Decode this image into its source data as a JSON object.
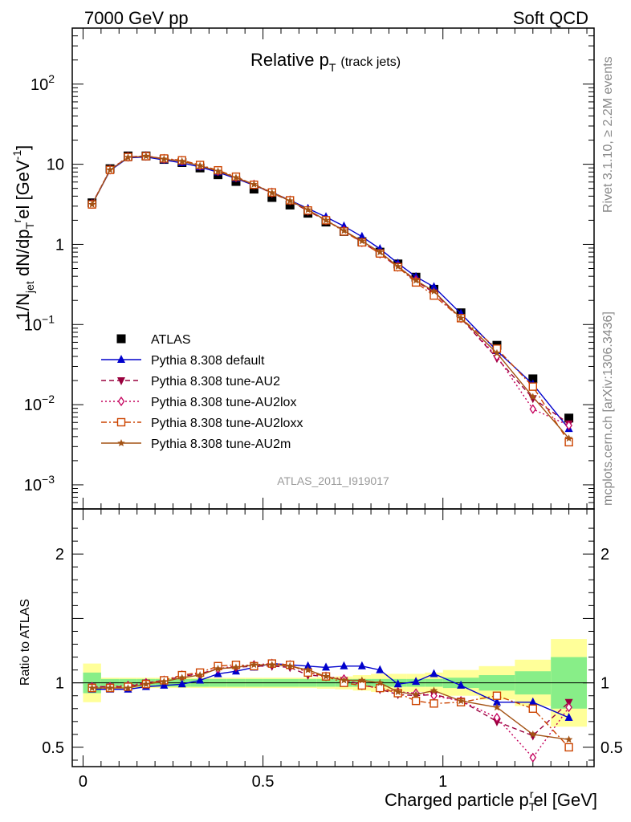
{
  "header": {
    "left": "7000 GeV pp",
    "right": "Soft QCD"
  },
  "side_text": {
    "rivet": "Rivet 3.1.10, ≥ 2.2M events",
    "mcplots": "mcplots.cern.ch [arXiv:1306.3436]"
  },
  "analysis_label": "ATLAS_2011_I919017",
  "chart_data": [
    {
      "type": "line",
      "title": "Relative p_T (track jets)",
      "title_main": "Relative p",
      "title_sub": "T",
      "title_suffix": "(track jets)",
      "ylabel": "1/N_jet dN/dp_T^rel [GeV^-1]",
      "ylabel_parts": {
        "a": "1/N",
        "a_sub": "jet",
        "b": " dN/dp",
        "b_sub": "T",
        "b_sup": "r",
        "c": "el [GeV",
        "c_sup": "-1",
        "d": "]"
      },
      "yscale": "log",
      "ylim": [
        0.0005,
        500
      ],
      "xlim": [
        -0.03,
        1.42
      ],
      "y_ticks": [
        "10^-3",
        "10^-2",
        "10^-1",
        "1",
        "10",
        "10^2"
      ],
      "legend_position": "bottom-left",
      "x": [
        0.025,
        0.075,
        0.125,
        0.175,
        0.225,
        0.275,
        0.325,
        0.375,
        0.425,
        0.475,
        0.525,
        0.575,
        0.625,
        0.675,
        0.725,
        0.775,
        0.825,
        0.875,
        0.925,
        0.975,
        1.05,
        1.15,
        1.25,
        1.35
      ],
      "series": [
        {
          "name": "ATLAS",
          "color": "#000000",
          "marker": "square-filled",
          "line": "none",
          "values": [
            3.3,
            8.8,
            12.7,
            12.7,
            11.5,
            10.5,
            9.0,
            7.4,
            6.1,
            4.9,
            3.85,
            3.1,
            2.45,
            1.9,
            1.45,
            1.08,
            0.8,
            0.57,
            0.39,
            0.275,
            0.14,
            0.055,
            0.021,
            0.0068
          ]
        },
        {
          "name": "Pythia 8.308 default",
          "color": "#0000cc",
          "marker": "triangle-up-filled",
          "line": "solid",
          "values": [
            3.15,
            8.35,
            12.0,
            12.3,
            11.3,
            10.4,
            9.25,
            7.95,
            6.65,
            5.45,
            4.45,
            3.55,
            2.8,
            2.2,
            1.69,
            1.25,
            0.88,
            0.58,
            0.395,
            0.295,
            0.137,
            0.047,
            0.018,
            0.005
          ]
        },
        {
          "name": "Pythia 8.308 tune-AU2",
          "color": "#99003d",
          "marker": "triangle-down-filled",
          "line": "dashed",
          "values": [
            3.2,
            8.5,
            12.3,
            12.7,
            11.7,
            11.0,
            9.6,
            8.2,
            6.8,
            5.5,
            4.35,
            3.5,
            2.6,
            2.0,
            1.48,
            1.07,
            0.76,
            0.52,
            0.35,
            0.25,
            0.12,
            0.038,
            0.012,
            0.0058
          ]
        },
        {
          "name": "Pythia 8.308 tune-AU2lox",
          "color": "#c4005c",
          "marker": "diamond-open",
          "line": "dotted",
          "values": [
            3.2,
            8.6,
            12.4,
            12.7,
            11.7,
            11.1,
            9.6,
            8.2,
            6.9,
            5.6,
            4.45,
            3.55,
            2.65,
            2.0,
            1.5,
            1.06,
            0.77,
            0.53,
            0.36,
            0.25,
            0.12,
            0.04,
            0.0088,
            0.0055
          ]
        },
        {
          "name": "Pythia 8.308 tune-AU2loxx",
          "color": "#cc4400",
          "marker": "square-open",
          "line": "dash-dot",
          "values": [
            3.15,
            8.5,
            12.3,
            12.6,
            11.8,
            11.2,
            9.8,
            8.4,
            7.0,
            5.55,
            4.45,
            3.55,
            2.65,
            2.0,
            1.45,
            1.06,
            0.77,
            0.52,
            0.335,
            0.23,
            0.12,
            0.05,
            0.0168,
            0.0034
          ]
        },
        {
          "name": "Pythia 8.308 tune-AU2m",
          "color": "#a35214",
          "marker": "star",
          "line": "solid",
          "values": [
            3.15,
            8.5,
            12.2,
            12.6,
            11.6,
            10.9,
            9.6,
            8.2,
            6.8,
            5.6,
            4.4,
            3.5,
            2.7,
            2.0,
            1.48,
            1.1,
            0.8,
            0.53,
            0.355,
            0.26,
            0.12,
            0.044,
            0.0125,
            0.0038
          ]
        }
      ]
    },
    {
      "type": "line",
      "xlabel": "Charged particle p_T^rel [GeV]",
      "xlabel_parts": {
        "a": "Charged particle p",
        "a_sub": "T",
        "a_sup": "r",
        "b": "el [GeV]"
      },
      "ylabel": "Ratio to ATLAS",
      "ylim": [
        0.35,
        2.35
      ],
      "y_ticks": [
        0.5,
        1,
        2
      ],
      "xlim": [
        -0.03,
        1.42
      ],
      "x_ticks": [
        0,
        0.5,
        1
      ],
      "x_tick_labels": [
        "0",
        "0.5",
        "1"
      ],
      "reference_line": 1,
      "x": [
        0.025,
        0.075,
        0.125,
        0.175,
        0.225,
        0.275,
        0.325,
        0.375,
        0.425,
        0.475,
        0.525,
        0.575,
        0.625,
        0.675,
        0.725,
        0.775,
        0.825,
        0.875,
        0.925,
        0.975,
        1.05,
        1.15,
        1.25,
        1.35
      ],
      "band_edges": [
        0.0,
        0.05,
        0.1,
        0.15,
        0.2,
        0.25,
        0.3,
        0.35,
        0.4,
        0.45,
        0.5,
        0.55,
        0.6,
        0.65,
        0.7,
        0.75,
        0.8,
        0.85,
        0.9,
        0.95,
        1.0,
        1.1,
        1.2,
        1.3,
        1.4
      ],
      "band_stat_sym": [
        0.08,
        0.03,
        0.03,
        0.03,
        0.03,
        0.03,
        0.03,
        0.03,
        0.03,
        0.03,
        0.03,
        0.03,
        0.03,
        0.03,
        0.03,
        0.03,
        0.03,
        0.03,
        0.03,
        0.03,
        0.04,
        0.06,
        0.09,
        0.2
      ],
      "band_total_sym": [
        0.15,
        0.04,
        0.04,
        0.04,
        0.04,
        0.04,
        0.04,
        0.04,
        0.04,
        0.04,
        0.04,
        0.04,
        0.04,
        0.045,
        0.05,
        0.06,
        0.07,
        0.07,
        0.07,
        0.08,
        0.1,
        0.13,
        0.18,
        0.34
      ],
      "band_colors": {
        "total": "#ffff99",
        "stat": "#88ee88"
      },
      "series": [
        {
          "name": "Pythia 8.308 default",
          "color": "#0000cc",
          "marker": "triangle-up-filled",
          "line": "solid",
          "values": [
            0.95,
            0.95,
            0.95,
            0.97,
            0.98,
            0.99,
            1.02,
            1.07,
            1.09,
            1.12,
            1.15,
            1.14,
            1.13,
            1.12,
            1.13,
            1.13,
            1.1,
            0.99,
            1.01,
            1.07,
            0.98,
            0.85,
            0.85,
            0.73
          ]
        },
        {
          "name": "Pythia 8.308 tune-AU2",
          "color": "#99003d",
          "marker": "triangle-down-filled",
          "line": "dashed",
          "values": [
            0.97,
            0.97,
            0.97,
            1.0,
            1.02,
            1.05,
            1.07,
            1.11,
            1.12,
            1.13,
            1.13,
            1.12,
            1.06,
            1.05,
            1.02,
            0.99,
            0.95,
            0.91,
            0.9,
            0.91,
            0.86,
            0.7,
            0.59,
            0.85
          ]
        },
        {
          "name": "Pythia 8.308 tune-AU2lox",
          "color": "#c4005c",
          "marker": "diamond-open",
          "line": "dotted",
          "values": [
            0.97,
            0.97,
            0.98,
            1.0,
            1.02,
            1.06,
            1.07,
            1.11,
            1.13,
            1.14,
            1.15,
            1.14,
            1.08,
            1.05,
            1.03,
            0.98,
            0.96,
            0.93,
            0.92,
            0.9,
            0.86,
            0.73,
            0.42,
            0.81
          ]
        },
        {
          "name": "Pythia 8.308 tune-AU2loxx",
          "color": "#cc4400",
          "marker": "square-open",
          "line": "dash-dot",
          "values": [
            0.96,
            0.96,
            0.97,
            0.99,
            1.02,
            1.06,
            1.08,
            1.13,
            1.14,
            1.13,
            1.15,
            1.14,
            1.08,
            1.05,
            1.0,
            0.98,
            0.96,
            0.92,
            0.86,
            0.84,
            0.85,
            0.9,
            0.8,
            0.5
          ]
        },
        {
          "name": "Pythia 8.308 tune-AU2m",
          "color": "#a35214",
          "marker": "star",
          "line": "solid",
          "values": [
            0.96,
            0.96,
            0.96,
            0.99,
            1.01,
            1.04,
            1.06,
            1.11,
            1.12,
            1.14,
            1.14,
            1.13,
            1.1,
            1.05,
            1.02,
            1.02,
            1.0,
            0.93,
            0.91,
            0.94,
            0.86,
            0.81,
            0.6,
            0.56
          ]
        }
      ]
    }
  ]
}
